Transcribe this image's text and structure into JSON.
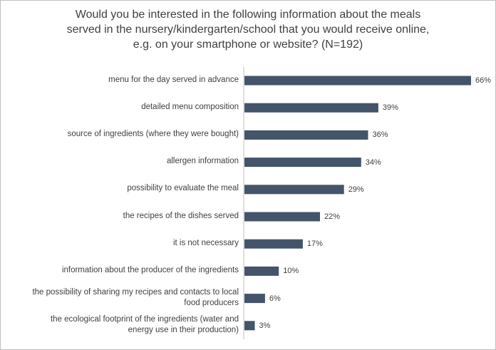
{
  "chart_data": {
    "type": "bar",
    "orientation": "horizontal",
    "title_lines": [
      "Would you be interested in the following information about the meals",
      "served in the nursery/kindergarten/school that you would receive online,",
      "e.g. on your smartphone or website? (N=192)"
    ],
    "categories": [
      [
        "menu for the day served in advance"
      ],
      [
        "detailed menu composition"
      ],
      [
        "source of ingredients (where they were bought)"
      ],
      [
        "allergen information"
      ],
      [
        "possibility to evaluate the meal"
      ],
      [
        "the recipes of the dishes served"
      ],
      [
        "it is not necessary"
      ],
      [
        "information about the producer of the ingredients"
      ],
      [
        "the possibility of sharing my recipes and contacts to local",
        "food producers"
      ],
      [
        "the ecological footprint of the ingredients (water and",
        "energy use in their production)"
      ]
    ],
    "values": [
      66,
      39,
      36,
      34,
      29,
      22,
      17,
      10,
      6,
      3
    ],
    "value_labels": [
      "66%",
      "39%",
      "36%",
      "34%",
      "29%",
      "22%",
      "17%",
      "10%",
      "6%",
      "3%"
    ],
    "unit": "%",
    "xlim": [
      0,
      66
    ],
    "bar_color": "#44546a",
    "axis_color": "#bfbfbf",
    "text_color": "#404040"
  }
}
